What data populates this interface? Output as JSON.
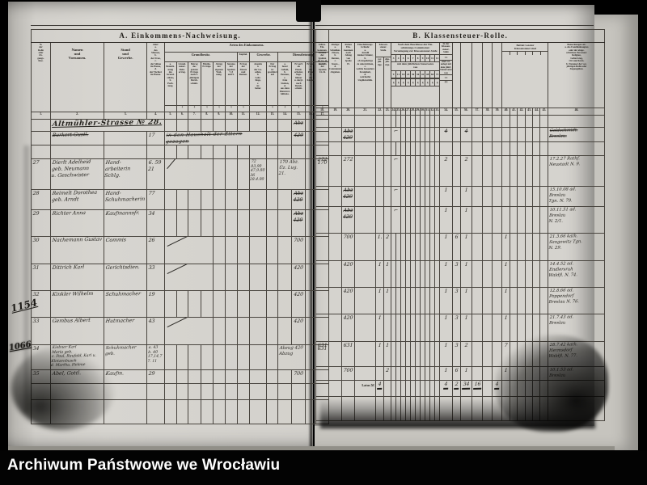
{
  "archive_bar": {
    "label": "Archiwum Państwowe we Wrocławiu"
  },
  "currency_mark": "₰",
  "margin_marks": [
    {
      "label": "1154"
    },
    {
      "label": "1066"
    }
  ],
  "left_page": {
    "title": "A. Einkommens-Nachweisung.",
    "arten_header": "Arten des Einkommens.",
    "col_no": "№\nder\nRolle\noder\nZu-\ngangs-\nliste.",
    "col_name": "Namen\nund\nVornamen.",
    "col_stand": "Stand\nund\nGewerbe.",
    "col_alter": "Alter:\na.\ndes\nMannes,\nb.\nder Frau,\nc.\nder Söhne\nim Hause,\nd.\nder Töchter\nim Hause.",
    "grp_grundbesitz": "Grundbesitz.",
    "grp_kapital": "Kapital.",
    "grp_gewerbe": "Gewerbe.",
    "grp_dienstleistung": "Dienstleistung.",
    "sub": [
      "a.\nBezeich-\nnung\ndes\nGrund-\nstücks,\nb.\nPach-\ntung.",
      "Grund-\nsteuer-\nRein-\nertrag.",
      "Betrag\ndes\nganzen\nErtrags\nnach 3-\njährigem\nDurch-\nschnitt.",
      "Miethe-\nErträge.",
      "Abzug\nder\neigenen\nWoh-\nnung.",
      "Summa\nder\nSpalten\n7, 8\nund 9.",
      "Ertrag\nder\nZinsen\nund\nRenten.",
      "Angabe\na.\nder Ge-\nsellen,\nb.\nLehr-\nlinge,\nc.\nAr-\nbeiter.",
      "Der\nErtrag\nist\ngeschätzt\nauf",
      "a.\nfester\nGehalt,\nb.\nPension,\nc.\nfreie\nStation,\nd.\naus dem\nDienstver-\nhältniss.",
      "Erwerb\nals\nHand-\narbeiter,\nTage-\nlöhner\nu. dergl.\nnach\nDurch-\nschnitt.",
      "Erwerb\na.\nder\nFrau,\nb.\nder\nKinder.",
      "Summa\nder\nSpalten\n14–16."
    ],
    "units": [
      "",
      "₰",
      "₰",
      "₰",
      "₰",
      "₰",
      "₰",
      "",
      "₰",
      "₰",
      "₰",
      "₰",
      "₰"
    ],
    "col_numbers": [
      "1.",
      "2.",
      "3.",
      "4.",
      "5.",
      "6.",
      "7.",
      "8.",
      "9.",
      "10.",
      "11.",
      "12.",
      "13.",
      "14.",
      "15.",
      "16.",
      "17."
    ],
    "rows": [
      {
        "cells": [
          {
            "c": 2,
            "span": 3,
            "t": "Altmühler-Strasse № 28.",
            "cls": "lg"
          },
          {
            "c": 15,
            "t": "Abz",
            "cls": "struck ctr"
          }
        ]
      },
      {
        "cells": [
          {
            "c": 2,
            "t": "Burkert Gustl.",
            "cls": "struck"
          },
          {
            "c": 4,
            "t": "17"
          },
          {
            "c": 5,
            "span": 8,
            "t": "in den Haushalt der Eltern gezogen",
            "cls": "note struck"
          },
          {
            "c": 15,
            "t": "420",
            "cls": "struck ctr"
          }
        ]
      },
      {
        "cells": []
      },
      {
        "cells": [
          {
            "c": 1,
            "t": "27"
          },
          {
            "c": 2,
            "t": "Dierlt Adelheid\ngeb. Neumann\nu. Geschwister"
          },
          {
            "c": 3,
            "t": "Hand-\narbeiterin\nSchlg."
          },
          {
            "c": 4,
            "t": "6. 59\n21"
          },
          {
            "c": 5,
            "span": 4,
            "cls": "slash tall"
          },
          {
            "c": 12,
            "t": "72\n83,90\n47,9.80\n36 28.4.00",
            "cls": "tiny-hw"
          },
          {
            "c": 14,
            "span": 2,
            "t": "170 Abz.\nÜz. Lug. 21.",
            "cls": "sm-hw"
          },
          {
            "c": 17,
            "t": "170",
            "cls": "ctr"
          }
        ]
      },
      {
        "cells": [
          {
            "c": 1,
            "t": "28"
          },
          {
            "c": 2,
            "t": "Reimelt Dorothea\ngeb. Arndt"
          },
          {
            "c": 3,
            "t": "Hand-\nSchuhmacherin"
          },
          {
            "c": 4,
            "t": "77"
          },
          {
            "c": 15,
            "t": "Abz\n420",
            "cls": "struck ctr"
          }
        ]
      },
      {
        "cells": [
          {
            "c": 1,
            "t": "29"
          },
          {
            "c": 2,
            "t": "Richter Anna"
          },
          {
            "c": 3,
            "t": "Kaufmannsfr."
          },
          {
            "c": 4,
            "t": "34"
          },
          {
            "c": 15,
            "t": "Abz\n420",
            "cls": "struck ctr"
          }
        ]
      },
      {
        "cells": [
          {
            "c": 1,
            "t": "30"
          },
          {
            "c": 2,
            "t": "Nachemann Gustav"
          },
          {
            "c": 3,
            "t": "Commis"
          },
          {
            "c": 4,
            "t": "26"
          },
          {
            "c": 5,
            "span": 4,
            "cls": "slash"
          },
          {
            "c": 15,
            "t": "700",
            "cls": "ctr"
          }
        ]
      },
      {
        "cells": [
          {
            "c": 1,
            "t": "31"
          },
          {
            "c": 2,
            "t": "Dittrich Karl"
          },
          {
            "c": 3,
            "t": "Gerichtsdien."
          },
          {
            "c": 4,
            "t": "33"
          },
          {
            "c": 5,
            "span": 4,
            "cls": "slash"
          },
          {
            "c": 15,
            "t": "420",
            "cls": "ctr"
          }
        ]
      },
      {
        "cells": [
          {
            "c": 1,
            "t": "32"
          },
          {
            "c": 2,
            "t": "Kinkler Wilhelm"
          },
          {
            "c": 3,
            "t": "Schuhmacher"
          },
          {
            "c": 4,
            "t": "19"
          },
          {
            "c": 15,
            "t": "420",
            "cls": "ctr"
          }
        ]
      },
      {
        "cells": [
          {
            "c": 1,
            "t": "33"
          },
          {
            "c": 2,
            "t": "Gembus Albert"
          },
          {
            "c": 3,
            "t": "Hutmacher"
          },
          {
            "c": 4,
            "t": "43"
          },
          {
            "c": 5,
            "span": 4,
            "cls": "slash"
          },
          {
            "c": 15,
            "t": "420",
            "cls": "ctr"
          }
        ]
      },
      {
        "cells": [
          {
            "c": 1,
            "t": "34"
          },
          {
            "c": 2,
            "t": "Kiebner Karl\nMaria geb.\nc. Paul, Raufald, Karl u. Klotzenbusch\nd. Martha, Helene",
            "cls": "tiny-hw"
          },
          {
            "c": 3,
            "t": "Schuhmacher\ngeb.",
            "cls": "sm-hw"
          },
          {
            "c": 4,
            "t": "a. 43\nb. 40\n17,14,7\n7. 11",
            "cls": "tiny-hw"
          },
          {
            "c": 14,
            "span": 2,
            "t": "Abzug 420\nAbzug",
            "cls": "sm-hw"
          },
          {
            "c": 17,
            "t": "631",
            "cls": "ctr"
          }
        ]
      },
      {
        "cells": [
          {
            "c": 1,
            "t": "35"
          },
          {
            "c": 2,
            "t": "Abel, Gottl."
          },
          {
            "c": 3,
            "t": "Kaufm."
          },
          {
            "c": 4,
            "t": "29"
          },
          {
            "c": 15,
            "t": "700",
            "cls": "ctr"
          }
        ]
      },
      {
        "cells": []
      },
      {
        "cells": []
      }
    ]
  },
  "right_page": {
    "title": "B. Klassensteuer-Rolle.",
    "col18": "Jahres-\nEin-\nkommen.\nSumme\nder\nSpalten\n10, 11, 13\nund 17.",
    "col19": "Abzüge:\na.\nSchulden-\nZinsen,\nb.\nRenten,\nc.\nStaats-,\nd.\nCommunal-\nAbgaben.",
    "col20": "Reines\nEin-\nkommen\nnach\nAbzug\nvon\nSpalte\n19.",
    "col21": "Einschätzungs-\nGründe:\na.\nAnzahl\nkleiner Kinder,\nb.\nob Angehörige\nzu unterstützen,\nc.\nwelche besondere\nKrankheit,\nd.\nwelcherlei\nUnglücksfälle.",
    "grp_stufe": "Klassen-\nsteuer-\nStufe.",
    "stufe_sub": [
      "vor-\njäh-\nrige.",
      "dies-\njäh-\nrige."
    ],
    "commission_label": "Nach dem Beschlusse der Ein-\nschätzungs-Commission:\nVeranlagung zur Klassensteuer-Stufe",
    "commission_stufen": [
      "3",
      "4",
      "5",
      "6",
      "7",
      "8",
      "9",
      "10",
      "11",
      "12"
    ],
    "rate_label": "mit dem jährlichen Steuersatze\nvon",
    "commission_rates": [
      "9",
      "12",
      "18",
      "24",
      "30",
      "36",
      "42",
      "48",
      "60",
      "72"
    ],
    "col34": {
      "top": "In der\nKlassen-\nsteuer-\nStufe",
      "nums": "1   2",
      "mid": "sind ver-\nanlagt mit\ndem jährl.\nSteuersatze\nvon",
      "rates": "1   2",
      "units": "₰   ₰"
    },
    "grp_befreit": "Befreit von der\nKlassensteuer sind",
    "col46": "Bemerkungen als:\na. des Familienhauptes\noder der einge-\nschätzten Personen:\nReligion,\nGeburtstag,\nOrt und Kreis.\nb. Nummer der vor-\njährigen Rolle oder\nZugangsliste.",
    "col_numbers": [
      "18.",
      "19.",
      "20.",
      "21.",
      "22.",
      "23.",
      "24.",
      "25.",
      "26.",
      "27.",
      "28.",
      "29.",
      "30.",
      "31.",
      "32.",
      "33.",
      "34.",
      "35.",
      "36.",
      "37.",
      "38.",
      "39.",
      "40.",
      "41.",
      "42.",
      "43.",
      "44.",
      "45.",
      "46."
    ],
    "rows": [
      {
        "cells": []
      },
      {
        "cells": [
          {
            "c": 20,
            "t": "Abz\n420",
            "cls": "struck ctr"
          },
          {
            "c": 24,
            "span": 2,
            "t": "⌐",
            "cls": "ctr"
          },
          {
            "c": 34,
            "t": "4",
            "cls": "struck ctr"
          },
          {
            "c": 36,
            "t": "4",
            "cls": "struck ctr"
          },
          {
            "c": 46,
            "t": "Goldschmidt.\nBreslau.",
            "cls": "rem struck"
          }
        ]
      },
      {
        "cells": []
      },
      {
        "cells": [
          {
            "c": 18,
            "t": "272",
            "cls": "ctr"
          },
          {
            "c": 20,
            "t": "272",
            "cls": "ctr"
          },
          {
            "c": 24,
            "span": 2,
            "t": "⌐",
            "cls": "ctr"
          },
          {
            "c": 34,
            "t": "2",
            "cls": "ctr"
          },
          {
            "c": 36,
            "t": "2",
            "cls": "ctr"
          },
          {
            "c": 46,
            "t": "17.2.27 Rathf.\nNeustadt N. 9.",
            "cls": "rem"
          }
        ]
      },
      {
        "cells": [
          {
            "c": 20,
            "t": "Abz\n420",
            "cls": "struck ctr"
          },
          {
            "c": 24,
            "span": 2,
            "t": "⌐",
            "cls": "ctr"
          },
          {
            "c": 34,
            "t": "1",
            "cls": "ctr"
          },
          {
            "c": 36,
            "t": "1",
            "cls": "ctr"
          },
          {
            "c": 46,
            "t": "15.10.08 ad.\nBreslau\nTgn. N. 79.",
            "cls": "rem"
          }
        ]
      },
      {
        "cells": [
          {
            "c": 20,
            "t": "Abz\n420",
            "cls": "struck ctr"
          },
          {
            "c": 24,
            "span": 2,
            "t": "⌐",
            "cls": "ctr"
          },
          {
            "c": 34,
            "t": "1",
            "cls": "ctr"
          },
          {
            "c": 36,
            "t": "1",
            "cls": "ctr"
          },
          {
            "c": 46,
            "t": "10.11.51 ad.\nBreslau\nN. 2/1.",
            "cls": "rem"
          }
        ]
      },
      {
        "cells": [
          {
            "c": 20,
            "t": "700",
            "cls": "ctr"
          },
          {
            "c": 22,
            "t": "1.",
            "cls": "ctr"
          },
          {
            "c": 23,
            "t": "2",
            "cls": "ctr"
          },
          {
            "c": 34,
            "t": "1",
            "cls": "ctr"
          },
          {
            "c": 35,
            "t": "6",
            "cls": "ctr"
          },
          {
            "c": 36,
            "t": "1",
            "cls": "ctr"
          },
          {
            "c": 40,
            "t": "1",
            "cls": "ctr"
          },
          {
            "c": 46,
            "t": "21.3.66 kath.\nSangowitz Tgn.\nN. 29.",
            "cls": "rem"
          }
        ]
      },
      {
        "cells": [
          {
            "c": 20,
            "t": "420",
            "cls": "ctr"
          },
          {
            "c": 22,
            "t": "1",
            "cls": "ctr"
          },
          {
            "c": 23,
            "t": "1",
            "cls": "ctr"
          },
          {
            "c": 34,
            "t": "1",
            "cls": "ctr"
          },
          {
            "c": 35,
            "t": "3",
            "cls": "ctr"
          },
          {
            "c": 36,
            "t": "1",
            "cls": "ctr"
          },
          {
            "c": 40,
            "t": "1",
            "cls": "ctr"
          },
          {
            "c": 46,
            "t": "14.4.52 ad.\nEndlersruh\nWaldfl. N. 74.",
            "cls": "rem"
          }
        ]
      },
      {
        "cells": [
          {
            "c": 20,
            "t": "420",
            "cls": "ctr"
          },
          {
            "c": 22,
            "t": "1",
            "cls": "ctr"
          },
          {
            "c": 23,
            "t": "1",
            "cls": "ctr"
          },
          {
            "c": 34,
            "t": "1",
            "cls": "ctr"
          },
          {
            "c": 35,
            "t": "3",
            "cls": "ctr"
          },
          {
            "c": 36,
            "t": "1",
            "cls": "ctr"
          },
          {
            "c": 40,
            "t": "1",
            "cls": "ctr"
          },
          {
            "c": 46,
            "t": "12.8.66 ad.\nPoppendorf\nBreslau N. 76.",
            "cls": "rem"
          }
        ]
      },
      {
        "cells": [
          {
            "c": 20,
            "t": "420",
            "cls": "ctr"
          },
          {
            "c": 22,
            "t": "1",
            "cls": "ctr"
          },
          {
            "c": 34,
            "t": "1",
            "cls": "ctr"
          },
          {
            "c": 35,
            "t": "3",
            "cls": "ctr"
          },
          {
            "c": 36,
            "t": "1",
            "cls": "ctr"
          },
          {
            "c": 40,
            "t": "1",
            "cls": "ctr"
          },
          {
            "c": 46,
            "t": "21.7.43 ad.\nBreslau",
            "cls": "rem"
          }
        ]
      },
      {
        "cells": [
          {
            "c": 18,
            "t": "631",
            "cls": "ctr"
          },
          {
            "c": 20,
            "t": "631",
            "cls": "ctr"
          },
          {
            "c": 22,
            "t": "1",
            "cls": "ctr"
          },
          {
            "c": 23,
            "t": "1",
            "cls": "ctr"
          },
          {
            "c": 34,
            "t": "1",
            "cls": "ctr"
          },
          {
            "c": 35,
            "t": "3",
            "cls": "ctr"
          },
          {
            "c": 36,
            "t": "2",
            "cls": "ctr"
          },
          {
            "c": 40,
            "t": "7",
            "cls": "ctr"
          },
          {
            "c": 46,
            "t": "28.7.42 kath.\nHermsdorf\nWaldfl. N. 77.",
            "cls": "rem"
          }
        ]
      },
      {
        "cells": [
          {
            "c": 20,
            "t": "700",
            "cls": "ctr"
          },
          {
            "c": 23,
            "t": "2",
            "cls": "ctr"
          },
          {
            "c": 34,
            "t": "1",
            "cls": "ctr"
          },
          {
            "c": 35,
            "t": "6",
            "cls": "ctr"
          },
          {
            "c": 36,
            "t": "1",
            "cls": "ctr"
          },
          {
            "c": 40,
            "t": "1",
            "cls": "ctr"
          },
          {
            "c": 46,
            "t": "10.1.53 ad.\nBreslau",
            "cls": "rem"
          }
        ]
      },
      {
        "cells": [
          {
            "c": 21,
            "t": "Latus ℳ",
            "cls": "latus"
          },
          {
            "c": 22,
            "t": "4",
            "cls": "ctr sumw"
          },
          {
            "c": 34,
            "t": "4",
            "cls": "ctr sumw"
          },
          {
            "c": 35,
            "t": "2",
            "cls": "ctr sumw"
          },
          {
            "c": 36,
            "t": "34",
            "cls": "ctr sumw"
          },
          {
            "c": 37,
            "t": "16",
            "cls": "ctr sumw"
          },
          {
            "c": 39,
            "t": "4",
            "cls": "ctr sumw"
          }
        ]
      },
      {
        "cells": []
      }
    ]
  }
}
